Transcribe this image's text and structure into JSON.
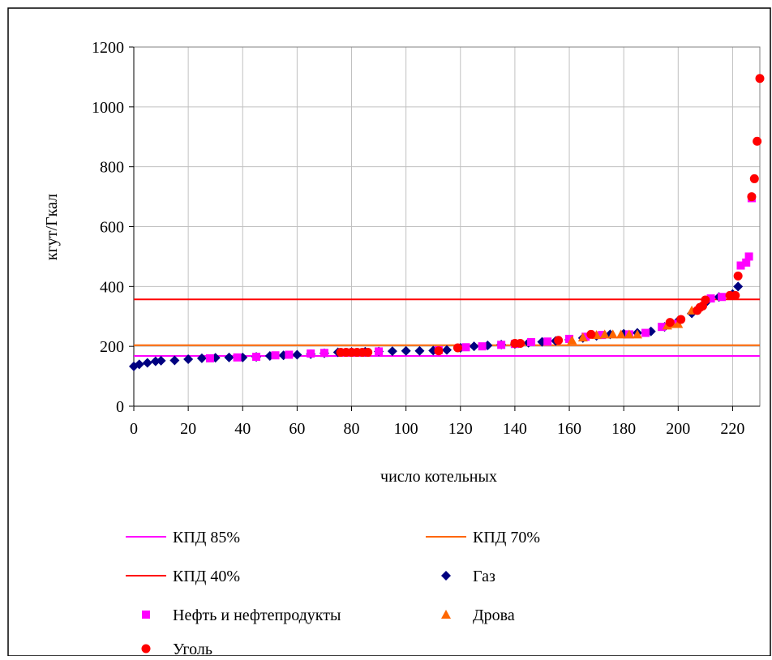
{
  "chart_data": {
    "type": "scatter",
    "xlabel": "число котельных",
    "ylabel": "кгут/Гкал",
    "xlim": [
      0,
      230
    ],
    "xticks": [
      0,
      20,
      40,
      60,
      80,
      100,
      120,
      140,
      160,
      180,
      200,
      220
    ],
    "ylim": [
      0,
      1200
    ],
    "yticks": [
      0,
      200,
      400,
      600,
      800,
      1000,
      1200
    ],
    "grid": true,
    "series": [
      {
        "name": "КПД 85%",
        "mode": "line",
        "color": "#ff00ff",
        "x": [
          0,
          230
        ],
        "values": [
          168,
          168
        ]
      },
      {
        "name": "КПД 70%",
        "mode": "line",
        "color": "#ff6600",
        "x": [
          0,
          230
        ],
        "values": [
          204,
          204
        ]
      },
      {
        "name": "КПД 40%",
        "mode": "line",
        "color": "#ff0000",
        "x": [
          0,
          230
        ],
        "values": [
          357,
          357
        ]
      },
      {
        "name": "Газ",
        "mode": "diamond",
        "color": "#000080",
        "x": [
          0,
          2,
          5,
          8,
          10,
          15,
          20,
          25,
          30,
          35,
          40,
          45,
          50,
          55,
          60,
          65,
          70,
          75,
          80,
          85,
          90,
          95,
          100,
          105,
          110,
          115,
          120,
          125,
          130,
          135,
          140,
          145,
          150,
          155,
          160,
          165,
          170,
          175,
          180,
          185,
          190,
          195,
          200,
          205,
          210,
          215,
          220,
          222
        ],
        "values": [
          133,
          140,
          145,
          150,
          152,
          153,
          157,
          160,
          162,
          163,
          163,
          165,
          168,
          170,
          172,
          174,
          177,
          180,
          181,
          182,
          183,
          184,
          185,
          185,
          186,
          188,
          195,
          200,
          203,
          206,
          208,
          212,
          215,
          218,
          222,
          228,
          235,
          240,
          242,
          245,
          250,
          265,
          285,
          310,
          345,
          365,
          375,
          400
        ]
      },
      {
        "name": "Нефть и нефтепродукты",
        "mode": "square",
        "color": "#ff00ff",
        "x": [
          28,
          38,
          45,
          52,
          57,
          65,
          70,
          90,
          112,
          122,
          128,
          135,
          140,
          146,
          152,
          160,
          166,
          172,
          182,
          188,
          194,
          198,
          212,
          216,
          223,
          225,
          226,
          227
        ],
        "values": [
          160,
          163,
          165,
          170,
          172,
          176,
          178,
          183,
          187,
          197,
          200,
          205,
          208,
          214,
          216,
          225,
          232,
          238,
          240,
          245,
          265,
          275,
          360,
          365,
          470,
          480,
          500,
          695
        ]
      },
      {
        "name": "Дрова",
        "mode": "triangle",
        "color": "#ff6600",
        "x": [
          161,
          165,
          170,
          173,
          176,
          179,
          182,
          185,
          196,
          198,
          200,
          205
        ],
        "values": [
          220,
          230,
          238,
          240,
          240,
          240,
          240,
          240,
          270,
          275,
          275,
          320
        ]
      },
      {
        "name": "Уголь",
        "mode": "circle",
        "color": "#ff0000",
        "x": [
          76,
          78,
          80,
          82,
          84,
          86,
          112,
          119,
          140,
          142,
          156,
          168,
          197,
          201,
          207,
          208,
          209,
          210,
          219,
          221,
          222,
          227,
          228,
          229,
          230
        ],
        "values": [
          180,
          180,
          180,
          180,
          180,
          180,
          185,
          195,
          210,
          210,
          220,
          240,
          280,
          290,
          320,
          330,
          335,
          355,
          370,
          370,
          435,
          700,
          760,
          885,
          1095
        ]
      }
    ]
  }
}
